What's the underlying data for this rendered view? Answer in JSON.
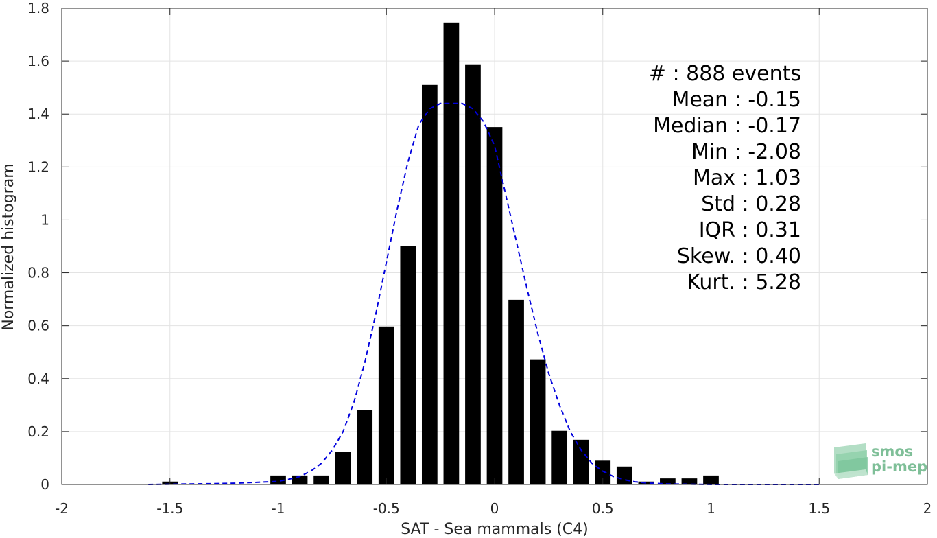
{
  "chart_data": {
    "type": "bar",
    "xlabel": "SAT - Sea mammals (C4)",
    "ylabel": "Normalized histogram",
    "xlim": [
      -2,
      2
    ],
    "ylim": [
      0,
      1.8
    ],
    "xticks": [
      -2,
      -1.5,
      -1,
      -0.5,
      0,
      0.5,
      1,
      1.5,
      2
    ],
    "xtick_labels": [
      "-2",
      "-1.5",
      "-1",
      "-0.5",
      "0",
      "0.5",
      "1",
      "1.5",
      "2"
    ],
    "yticks": [
      0,
      0.2,
      0.4,
      0.6,
      0.8,
      1,
      1.2,
      1.4,
      1.6,
      1.8
    ],
    "ytick_labels": [
      "0",
      "0.2",
      "0.4",
      "0.6",
      "0.8",
      "1",
      "1.2",
      "1.4",
      "1.6",
      "1.8"
    ],
    "grid": true,
    "bar_color": "#000000",
    "bars": {
      "x": [
        -1.5,
        -1.0,
        -0.9,
        -0.8,
        -0.7,
        -0.6,
        -0.5,
        -0.4,
        -0.3,
        -0.2,
        -0.1,
        0.0,
        0.1,
        0.2,
        0.3,
        0.4,
        0.5,
        0.6,
        0.7,
        0.8,
        0.9,
        1.0
      ],
      "values": [
        0.011,
        0.034,
        0.034,
        0.034,
        0.124,
        0.282,
        0.597,
        0.902,
        1.51,
        1.746,
        1.588,
        1.351,
        0.698,
        0.473,
        0.203,
        0.169,
        0.09,
        0.068,
        0.011,
        0.023,
        0.023,
        0.034
      ]
    },
    "fit_line": {
      "style": "dashed",
      "color": "#0000dd",
      "x": [
        -1.6,
        -1.5,
        -1.4,
        -1.3,
        -1.2,
        -1.1,
        -1.0,
        -0.95,
        -0.9,
        -0.85,
        -0.8,
        -0.75,
        -0.7,
        -0.65,
        -0.6,
        -0.55,
        -0.5,
        -0.45,
        -0.4,
        -0.35,
        -0.3,
        -0.25,
        -0.2,
        -0.15,
        -0.1,
        -0.05,
        0.0,
        0.05,
        0.1,
        0.15,
        0.2,
        0.25,
        0.3,
        0.35,
        0.4,
        0.45,
        0.5,
        0.55,
        0.6,
        0.65,
        0.7,
        0.75,
        0.8,
        0.9,
        1.0,
        1.1,
        1.2,
        1.3,
        1.4,
        1.5
      ],
      "y": [
        0.0,
        0.001,
        0.002,
        0.003,
        0.005,
        0.008,
        0.012,
        0.02,
        0.03,
        0.05,
        0.08,
        0.13,
        0.2,
        0.31,
        0.46,
        0.64,
        0.84,
        1.04,
        1.22,
        1.36,
        1.42,
        1.44,
        1.44,
        1.44,
        1.42,
        1.37,
        1.28,
        1.1,
        0.92,
        0.74,
        0.57,
        0.42,
        0.3,
        0.2,
        0.13,
        0.08,
        0.05,
        0.03,
        0.018,
        0.01,
        0.006,
        0.004,
        0.002,
        0.001,
        0.0,
        0.0,
        0.0,
        0.0,
        0.0,
        0.0
      ]
    },
    "annotations": [
      "#  : 888 events",
      "Mean : -0.15",
      "Median : -0.17",
      "Min : -2.08",
      "Max : 1.03",
      "Std : 0.28",
      "IQR : 0.31",
      "Skew. : 0.40",
      "Kurt. : 5.28"
    ]
  },
  "logo": {
    "line1": "smos",
    "line2": "pi-mep",
    "color": "#7fbf98"
  }
}
